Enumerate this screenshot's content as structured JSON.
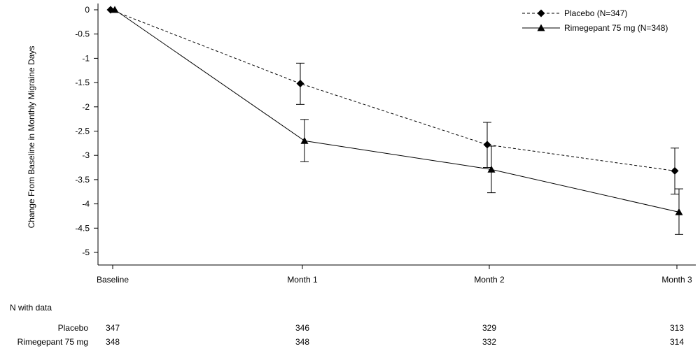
{
  "chart_data": {
    "type": "line",
    "ylabel": "Change From Baseline in Monthly Migraine Days",
    "xlabel": "",
    "categories": [
      "Baseline",
      "Month 1",
      "Month 2",
      "Month 3"
    ],
    "ylim": [
      -5.4,
      0.1
    ],
    "yticks": [
      0,
      -0.5,
      -1,
      -1.5,
      -2,
      -2.5,
      -3,
      -3.5,
      -4,
      -4.5,
      -5
    ],
    "legend_position": "top-right",
    "series": [
      {
        "name": "Placebo (N=347)",
        "marker": "diamond",
        "line_style": "dashed",
        "color": "#000000",
        "values": [
          0,
          -1.52,
          -2.78,
          -3.32
        ],
        "error_low": [
          0,
          -1.95,
          -3.25,
          -3.8
        ],
        "error_high": [
          0,
          -1.1,
          -2.32,
          -2.85
        ]
      },
      {
        "name": "Rimegepant 75 mg (N=348)",
        "marker": "triangle",
        "line_style": "solid",
        "color": "#000000",
        "values": [
          0,
          -2.7,
          -3.29,
          -4.17
        ],
        "error_low": [
          0,
          -3.13,
          -3.77,
          -4.63
        ],
        "error_high": [
          0,
          -2.26,
          -2.81,
          -3.69
        ]
      }
    ]
  },
  "n_table": {
    "title": "N with data",
    "rows": [
      {
        "label": "Placebo",
        "values": [
          "347",
          "346",
          "329",
          "313"
        ]
      },
      {
        "label": "Rimegepant 75 mg",
        "values": [
          "348",
          "348",
          "332",
          "314"
        ]
      }
    ]
  }
}
